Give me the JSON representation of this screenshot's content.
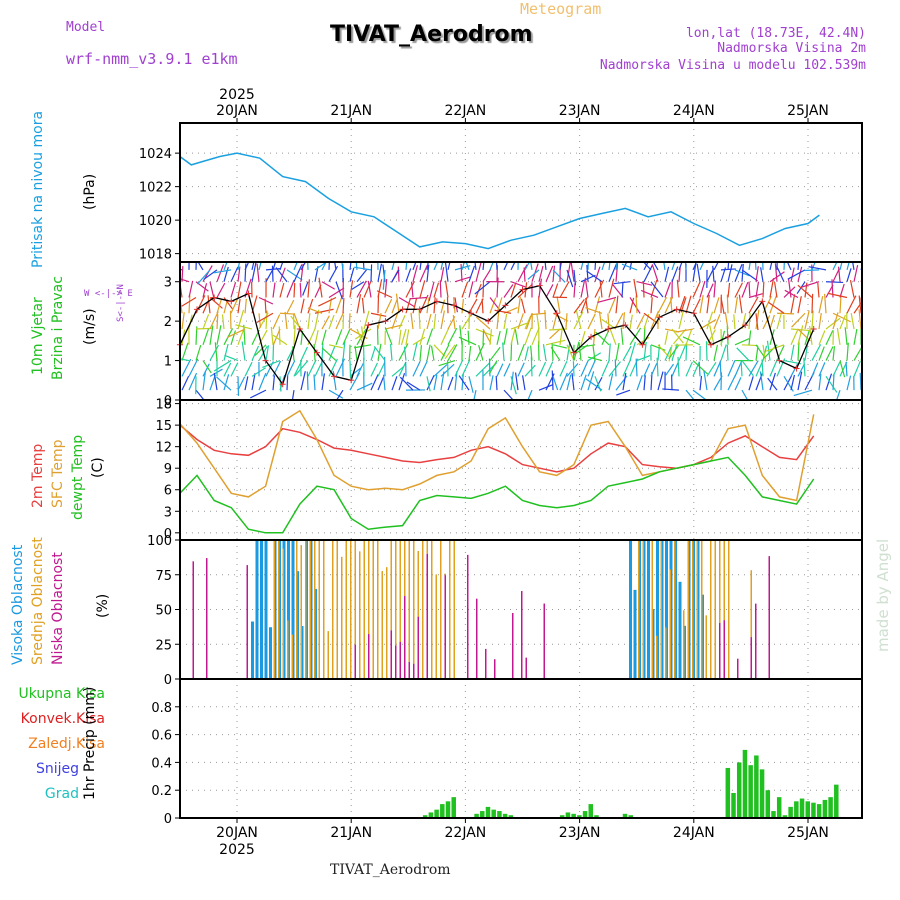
{
  "header": {
    "model_label": "Model",
    "model_name": "wrf-nmm_v3.9.1  e1km",
    "title": "TIVAT_Aerodrom",
    "subtitle": "Meteogram",
    "location": "lon,lat (18.73E, 42.4N)",
    "elevation": "Nadmorska Visina 2m",
    "model_elevation": "Nadmorska Visina u modelu 102.539m",
    "footer": "TIVAT_Aerodrom",
    "watermark": "made by Angel"
  },
  "panel_labels": {
    "pressure": [
      "Pritisak na nivou mora"
    ],
    "pressure_unit": "(hPa)",
    "wind": [
      "10m Vjetar",
      "Brzina i Pravac"
    ],
    "wind_unit": "(m/s)",
    "compass": "W  <-|->  E",
    "compass_s": "S<-|->N",
    "temp": [
      "2m Temp",
      "SFC Temp",
      "dewpt Temp"
    ],
    "temp_unit": "(C)",
    "cloud": [
      "Visoka Oblacnost",
      "Srednja Oblacnost",
      "Niska Oblacnost"
    ],
    "cloud_unit": "(%)",
    "precip_legend": [
      "Ukupna Kisa",
      "Konvek.Kisa",
      "Zaledj.Kisa",
      "Snijeg",
      "Grad"
    ],
    "precip_unit": "1hr Precip (mm)"
  },
  "colors": {
    "pressure": "#1aa0e0",
    "temp2m": "#e84040",
    "sfc": "#e0a030",
    "dewpt": "#20c020",
    "high_cloud": "#1a9ae0",
    "mid_cloud": "#e0a020",
    "low_cloud": "#c01890",
    "precip": "#20c020",
    "conv": "#e02020",
    "frz": "#f08020",
    "snow": "#4040e0",
    "grad": "#20c0c0",
    "model": "#a040d0"
  },
  "chart_data": [
    {
      "type": "line",
      "name": "pressure",
      "x_ticks": [
        "20JAN",
        "21JAN",
        "22JAN",
        "23JAN",
        "24JAN",
        "25JAN"
      ],
      "x_top_year": "2025",
      "ylim": [
        1017.5,
        1025.8
      ],
      "yticks": [
        1018,
        1020,
        1022,
        1024
      ],
      "x": [
        0.0,
        0.1,
        0.2,
        0.35,
        0.5,
        0.7,
        0.9,
        1.1,
        1.3,
        1.5,
        1.7,
        1.9,
        2.1,
        2.3,
        2.5,
        2.7,
        2.9,
        3.1,
        3.3,
        3.5,
        3.7,
        3.9,
        4.1,
        4.3,
        4.5,
        4.7,
        4.9,
        5.1,
        5.3,
        5.5,
        5.6
      ],
      "values": [
        1023.8,
        1023.3,
        1023.5,
        1023.8,
        1024.0,
        1023.7,
        1022.6,
        1022.3,
        1021.3,
        1020.5,
        1020.2,
        1019.3,
        1018.4,
        1018.7,
        1018.6,
        1018.3,
        1018.8,
        1019.1,
        1019.6,
        1020.1,
        1020.4,
        1020.7,
        1020.2,
        1020.5,
        1019.8,
        1019.2,
        1018.5,
        1018.9,
        1019.5,
        1019.8,
        1020.3
      ],
      "series_name": "Pritisak na nivou mora"
    },
    {
      "type": "line",
      "name": "wind",
      "ylim": [
        0,
        3.5
      ],
      "yticks": [
        0,
        1,
        2,
        3
      ],
      "x": [
        0.0,
        0.15,
        0.3,
        0.45,
        0.6,
        0.75,
        0.9,
        1.05,
        1.2,
        1.35,
        1.5,
        1.65,
        1.8,
        1.95,
        2.1,
        2.25,
        2.4,
        2.55,
        2.7,
        2.85,
        3.0,
        3.15,
        3.3,
        3.45,
        3.6,
        3.75,
        3.9,
        4.05,
        4.2,
        4.35,
        4.5,
        4.65,
        4.8,
        4.95,
        5.1,
        5.25,
        5.4,
        5.55
      ],
      "values": [
        1.4,
        2.3,
        2.6,
        2.5,
        2.7,
        1.0,
        0.4,
        1.8,
        1.2,
        0.6,
        0.5,
        1.9,
        2.0,
        2.3,
        2.3,
        2.5,
        2.4,
        2.2,
        2.0,
        2.4,
        2.8,
        2.9,
        2.2,
        1.2,
        1.6,
        1.8,
        1.9,
        1.4,
        2.1,
        2.3,
        2.2,
        1.4,
        1.6,
        1.9,
        2.5,
        1.0,
        0.8,
        1.8
      ]
    },
    {
      "type": "line",
      "name": "temperature",
      "ylim": [
        -1,
        18.5
      ],
      "yticks": [
        0,
        3,
        6,
        9,
        12,
        15,
        18
      ],
      "x": [
        0.0,
        0.15,
        0.3,
        0.45,
        0.6,
        0.75,
        0.9,
        1.05,
        1.2,
        1.35,
        1.5,
        1.65,
        1.8,
        1.95,
        2.1,
        2.25,
        2.4,
        2.55,
        2.7,
        2.85,
        3.0,
        3.15,
        3.3,
        3.45,
        3.6,
        3.75,
        3.9,
        4.05,
        4.2,
        4.35,
        4.5,
        4.65,
        4.8,
        4.95,
        5.1,
        5.25,
        5.4,
        5.55
      ],
      "series": [
        {
          "name": "2m Temp",
          "values": [
            15.0,
            13.0,
            11.5,
            11.0,
            10.8,
            12.0,
            14.5,
            14.0,
            13.0,
            11.8,
            11.5,
            11.0,
            10.5,
            10.0,
            9.8,
            10.2,
            10.5,
            11.5,
            12.0,
            11.0,
            9.5,
            9.0,
            8.5,
            9.0,
            11.0,
            12.5,
            12.0,
            9.5,
            9.2,
            9.0,
            9.5,
            10.5,
            12.5,
            13.5,
            12.0,
            10.5,
            10.2,
            13.5
          ]
        },
        {
          "name": "SFC Temp",
          "values": [
            15.2,
            12.5,
            9.0,
            5.5,
            5.0,
            6.5,
            15.5,
            17.0,
            13.0,
            8.0,
            6.5,
            6.0,
            6.2,
            6.0,
            6.8,
            8.0,
            8.5,
            10.0,
            14.5,
            16.0,
            12.0,
            8.5,
            8.0,
            9.5,
            15.0,
            15.5,
            12.0,
            8.0,
            8.5,
            9.0,
            9.5,
            10.0,
            14.5,
            15.0,
            8.0,
            5.0,
            4.5,
            16.5
          ]
        },
        {
          "name": "dewpt Temp",
          "values": [
            5.5,
            8.0,
            4.5,
            3.5,
            0.5,
            0.0,
            0.0,
            4.0,
            6.5,
            6.0,
            2.0,
            0.5,
            0.8,
            1.0,
            4.5,
            5.2,
            5.0,
            4.8,
            5.5,
            6.5,
            4.5,
            3.8,
            3.5,
            3.8,
            4.5,
            6.5,
            7.0,
            7.5,
            8.5,
            9.0,
            9.5,
            10.0,
            10.5,
            8.0,
            5.0,
            4.5,
            4.0,
            7.5
          ]
        }
      ]
    },
    {
      "type": "bar",
      "name": "cloud",
      "ylim": [
        0,
        100
      ],
      "yticks": [
        0,
        25,
        50,
        75,
        100
      ]
    },
    {
      "type": "bar",
      "name": "precipitation",
      "ylim": [
        0,
        1.0
      ],
      "yticks": [
        0,
        0.2,
        0.4,
        0.6,
        0.8
      ],
      "x_ticks": [
        "20JAN",
        "21JAN",
        "22JAN",
        "23JAN",
        "24JAN",
        "25JAN"
      ],
      "x_bottom_year": "2025",
      "x": [
        2.15,
        2.2,
        2.25,
        2.3,
        2.35,
        2.4,
        2.6,
        2.65,
        2.7,
        2.75,
        2.8,
        2.85,
        2.9,
        3.35,
        3.4,
        3.45,
        3.5,
        3.55,
        3.6,
        3.65,
        3.9,
        3.95,
        4.8,
        4.85,
        4.9,
        4.95,
        5.0,
        5.05,
        5.1,
        5.15,
        5.2,
        5.25,
        5.3,
        5.35,
        5.4,
        5.45,
        5.5,
        5.55,
        5.6,
        5.65,
        5.7,
        5.75,
        5.8,
        5.85,
        5.9,
        5.95
      ],
      "values": [
        0.02,
        0.04,
        0.06,
        0.1,
        0.12,
        0.15,
        0.03,
        0.05,
        0.08,
        0.06,
        0.05,
        0.03,
        0.02,
        0.02,
        0.04,
        0.03,
        0.02,
        0.05,
        0.1,
        0.02,
        0.03,
        0.02,
        0.36,
        0.18,
        0.4,
        0.49,
        0.38,
        0.45,
        0.35,
        0.2,
        0.05,
        0.15,
        0.02,
        0.08,
        0.12,
        0.14,
        0.12,
        0.11,
        0.1,
        0.13,
        0.15,
        0.24,
        0.0,
        0.0,
        0.0,
        0.0
      ]
    }
  ]
}
